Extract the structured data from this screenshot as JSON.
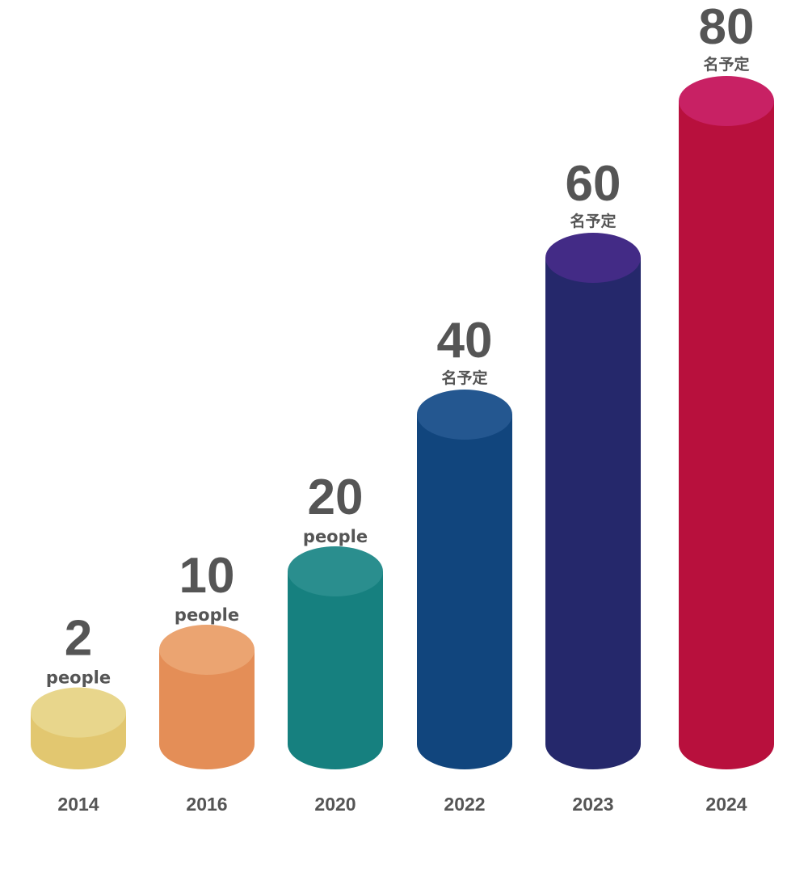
{
  "chart_data": {
    "type": "bar",
    "style": "3d-cylinder",
    "title": "",
    "xlabel": "",
    "ylabel": "",
    "ylim": [
      0,
      80
    ],
    "grid": false,
    "categories": [
      "2014",
      "2016",
      "2020",
      "2022",
      "2023",
      "2024"
    ],
    "values": [
      2,
      10,
      20,
      40,
      60,
      80
    ],
    "value_labels": [
      "2",
      "10",
      "20",
      "40",
      "60",
      "80"
    ],
    "unit_labels": [
      "people",
      "people",
      "people",
      "名予定",
      "名予定",
      "名予定"
    ],
    "colors": [
      {
        "side": "#E2C770",
        "top": "#E8D68C"
      },
      {
        "side": "#E48E57",
        "top": "#EBA471"
      },
      {
        "side": "#16807F",
        "top": "#2A8E8E"
      },
      {
        "side": "#11457D",
        "top": "#245790"
      },
      {
        "side": "#25286B",
        "top": "#432B86"
      },
      {
        "side": "#B8103D",
        "top": "#C82164"
      }
    ]
  }
}
